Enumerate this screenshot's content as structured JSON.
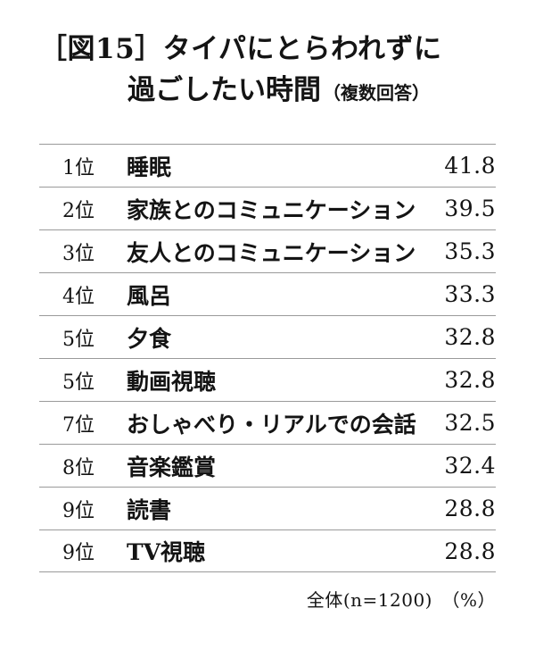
{
  "title": {
    "line1": "［図15］タイパにとらわれずに",
    "line2": "過ごしたい時間",
    "note": "（複数回答）"
  },
  "footer": {
    "note": "全体(n=1200)　（%）"
  },
  "chart_data": {
    "type": "table",
    "title": "［図15］タイパにとらわれずに過ごしたい時間（複数回答）",
    "unit": "%",
    "sample_note": "全体(n=1200)",
    "rows": [
      {
        "rank": "1位",
        "item": "睡眠",
        "value": 41.8
      },
      {
        "rank": "2位",
        "item": "家族とのコミュニケーション",
        "value": 39.5
      },
      {
        "rank": "3位",
        "item": "友人とのコミュニケーション",
        "value": 35.3
      },
      {
        "rank": "4位",
        "item": "風呂",
        "value": 33.3
      },
      {
        "rank": "5位",
        "item": "夕食",
        "value": 32.8
      },
      {
        "rank": "5位",
        "item": "動画視聴",
        "value": 32.8
      },
      {
        "rank": "7位",
        "item": "おしゃべり・リアルでの会話",
        "value": 32.5
      },
      {
        "rank": "8位",
        "item": "音楽鑑賞",
        "value": 32.4
      },
      {
        "rank": "9位",
        "item": "読書",
        "value": 28.8
      },
      {
        "rank": "9位",
        "item": "TV視聴",
        "value": 28.8
      }
    ]
  }
}
